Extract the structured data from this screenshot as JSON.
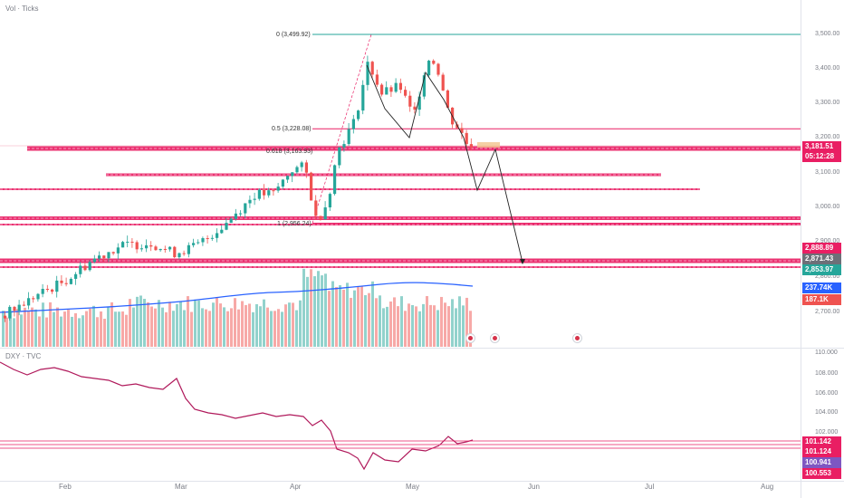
{
  "upper_pane": {
    "title": "Vol · Ticks"
  },
  "lower_pane": {
    "title": "DXY · TVC"
  },
  "fib_levels": [
    {
      "label": "0 (3,499.92)",
      "value": 3499.92,
      "color": "#26a69a"
    },
    {
      "label": "0.5 (3,228.08)",
      "value": 3228.08,
      "color": "#e91e63"
    },
    {
      "label": "0.618 (3,163.93)",
      "value": 3163.93,
      "color": "#e91e63"
    },
    {
      "label": "1 (2,956.24)",
      "value": 2956.24,
      "color": "#e91e63"
    }
  ],
  "price_axis": [
    "3,500.00",
    "3,400.00",
    "3,300.00",
    "3,200.00",
    "3,100.00",
    "3,000.00",
    "2,900.00",
    "2,800.00",
    "2,700.00"
  ],
  "price_labels": [
    {
      "value": "3,181.51",
      "sub": "05:12:28",
      "color": "#e91e63"
    },
    {
      "value": "2,888.89",
      "color": "#e91e63"
    },
    {
      "value": "2,871.43",
      "color": "#6d6f78"
    },
    {
      "value": "2,853.97",
      "color": "#26a69a"
    },
    {
      "value": "237.74K",
      "color": "#2962ff"
    },
    {
      "value": "187.1K",
      "color": "#ef5350"
    }
  ],
  "dxy_axis": [
    "110.000",
    "108.000",
    "106.000",
    "104.000",
    "102.000"
  ],
  "dxy_labels": [
    {
      "value": "101.142",
      "color": "#e91e63"
    },
    {
      "value": "101.124",
      "color": "#e91e63"
    },
    {
      "value": "100.941",
      "color": "#7e57c2"
    },
    {
      "value": "100.553",
      "color": "#e91e63"
    }
  ],
  "time_axis": [
    "Feb",
    "Mar",
    "Apr",
    "May",
    "Jun",
    "Jul",
    "Aug"
  ],
  "events": [
    {
      "icon": "us-flag-icon"
    },
    {
      "icon": "us-flag-icon"
    },
    {
      "icon": "us-flag-icon"
    }
  ],
  "colors": {
    "up": "#26a69a",
    "down": "#ef5350",
    "level": "#e91e63",
    "ma": "#2962ff",
    "dxy": "#b0195b"
  }
}
